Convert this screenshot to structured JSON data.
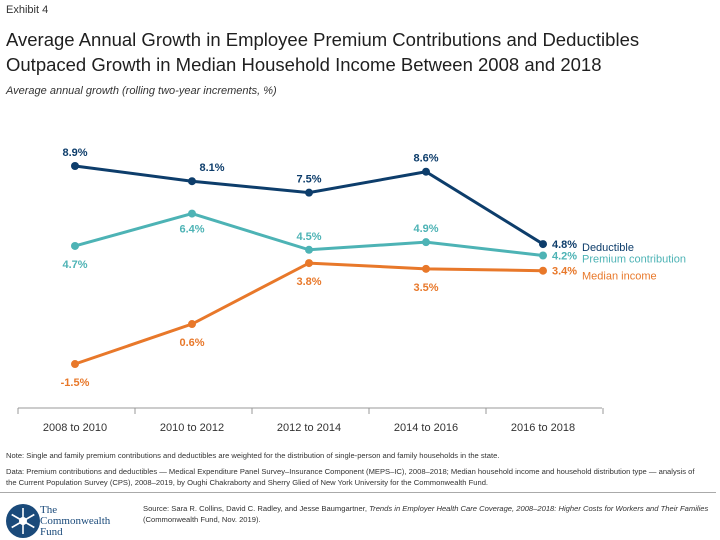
{
  "exhibit": "Exhibit 4",
  "title": "Average Annual Growth in Employee Premium Contributions and Deductibles Outpaced Growth in Median Household Income Between 2008 and 2018",
  "subtitle": "Average annual growth (rolling two-year increments, %)",
  "chart_data": {
    "type": "line",
    "categories": [
      "2008 to 2010",
      "2010 to 2012",
      "2012 to 2014",
      "2014 to 2016",
      "2016 to 2018"
    ],
    "series": [
      {
        "name": "Deductible",
        "values": [
          8.9,
          8.1,
          7.5,
          8.6,
          4.8
        ],
        "labels": [
          "8.9%",
          "8.1%",
          "7.5%",
          "8.6%",
          "4.8%"
        ],
        "color": "#0d3d6b"
      },
      {
        "name": "Premium contribution",
        "values": [
          4.7,
          6.4,
          4.5,
          4.9,
          4.2
        ],
        "labels": [
          "4.7%",
          "6.4%",
          "4.5%",
          "4.9%",
          "4.2%"
        ],
        "color": "#4db3b5"
      },
      {
        "name": "Median income",
        "values": [
          -1.5,
          0.6,
          3.8,
          3.5,
          3.4
        ],
        "labels": [
          "-1.5%",
          "0.6%",
          "3.8%",
          "3.5%",
          "3.4%"
        ],
        "color": "#e8782a"
      }
    ],
    "legend": "right, end of lines",
    "grid": false
  },
  "notes": {
    "note": "Note: Single and family premium contributions and deductibles are weighted for the distribution of single-person and family households in the state.",
    "data": "Data: Premium contributions and deductibles — Medical Expenditure Panel Survey–Insurance Component (MEPS–IC), 2008–2018; Median household income and household distribution type — analysis of the Current Population Survey (CPS), 2008–2019, by Oughi Chakraborty and Sherry Glied of New York University for the Commonwealth Fund."
  },
  "footer": {
    "logo_text": "The Commonwealth Fund",
    "source_prefix": "Source: Sara R. Collins, David C. Radley, and Jesse Baumgartner, ",
    "source_title": "Trends in Employer Health Care Coverage, 2008–2018: Higher Costs for Workers and Their Families",
    "source_suffix": " (Commonwealth Fund, Nov. 2019)."
  }
}
